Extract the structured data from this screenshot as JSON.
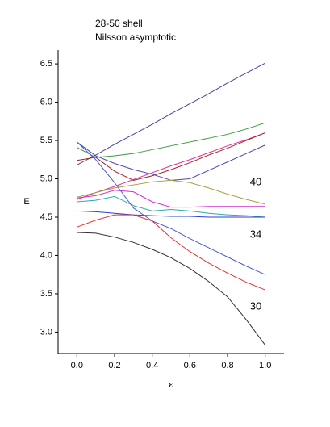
{
  "chart_data": {
    "type": "line",
    "title": "28-50 shell",
    "subtitle": "Nilsson asymptotic",
    "x_label": "ε",
    "y_label": "E",
    "x": [
      0,
      0.1,
      0.2,
      0.3,
      0.4,
      0.5,
      0.6,
      0.7,
      0.8,
      0.9,
      1.0
    ],
    "series": [
      {
        "color": "#4b3fa0",
        "values": [
          5.18,
          5.31,
          5.45,
          5.58,
          5.71,
          5.85,
          5.98,
          6.11,
          6.25,
          6.38,
          6.51
        ]
      },
      {
        "color": "#3a9a3a",
        "values": [
          5.41,
          5.28,
          5.3,
          5.33,
          5.38,
          5.43,
          5.48,
          5.53,
          5.58,
          5.65,
          5.73
        ]
      },
      {
        "color": "#e0309a",
        "values": [
          4.73,
          4.82,
          4.9,
          4.99,
          5.08,
          5.17,
          5.25,
          5.34,
          5.43,
          5.51,
          5.6
        ]
      },
      {
        "color": "#a02828",
        "values": [
          5.24,
          5.28,
          5.1,
          4.98,
          5.04,
          5.12,
          5.21,
          5.31,
          5.4,
          5.5,
          5.6
        ]
      },
      {
        "color": "#5046b0",
        "values": [
          5.48,
          5.3,
          5.2,
          5.12,
          5.06,
          4.98,
          5.0,
          5.11,
          5.22,
          5.33,
          5.44
        ]
      },
      {
        "color": "#a8a040",
        "values": [
          4.76,
          4.82,
          4.88,
          4.92,
          4.96,
          4.98,
          4.95,
          4.88,
          4.8,
          4.73,
          4.67
        ]
      },
      {
        "color": "#d030d0",
        "values": [
          4.75,
          4.78,
          4.85,
          4.83,
          4.7,
          4.63,
          4.63,
          4.64,
          4.64,
          4.64,
          4.64
        ]
      },
      {
        "color": "#30a8a8",
        "values": [
          4.7,
          4.72,
          4.77,
          4.65,
          4.58,
          4.6,
          4.58,
          4.55,
          4.53,
          4.52,
          4.5
        ]
      },
      {
        "color": "#2a3ee0",
        "values": [
          4.58,
          4.57,
          4.55,
          4.53,
          4.52,
          4.51,
          4.51,
          4.5,
          4.5,
          4.5,
          4.5
        ]
      },
      {
        "color": "#4a5ad8",
        "values": [
          5.48,
          5.25,
          4.95,
          4.62,
          4.45,
          4.35,
          4.22,
          4.1,
          3.98,
          3.86,
          3.75
        ]
      },
      {
        "color": "#e83030",
        "values": [
          4.37,
          4.46,
          4.53,
          4.53,
          4.45,
          4.23,
          4.05,
          3.9,
          3.77,
          3.65,
          3.55
        ]
      },
      {
        "color": "#303030",
        "values": [
          4.3,
          4.29,
          4.24,
          4.17,
          4.08,
          3.97,
          3.83,
          3.66,
          3.46,
          3.16,
          2.83
        ]
      }
    ],
    "annotations": [
      {
        "text": "40",
        "x": 0.95,
        "y": 4.95
      },
      {
        "text": "34",
        "x": 0.95,
        "y": 4.27
      },
      {
        "text": "30",
        "x": 0.95,
        "y": 3.33
      }
    ],
    "xlim": [
      -0.1,
      1.1
    ],
    "ylim": [
      2.72,
      6.68
    ],
    "xticks": [
      {
        "value": 0,
        "label": "0.0"
      },
      {
        "value": 0.2,
        "label": "0.2"
      },
      {
        "value": 0.4,
        "label": "0.4"
      },
      {
        "value": 0.6,
        "label": "0.6"
      },
      {
        "value": 0.8,
        "label": "0.8"
      },
      {
        "value": 1.0,
        "label": "1.0"
      }
    ],
    "yticks": [
      {
        "value": 3.0,
        "label": "3.0"
      },
      3.5,
      {
        "value": 4.0,
        "label": "4.0"
      },
      4.5,
      {
        "value": 5.0,
        "label": "5.0"
      },
      5.5,
      {
        "value": 6.0,
        "label": "6.0"
      },
      6.5
    ],
    "grid": false
  }
}
